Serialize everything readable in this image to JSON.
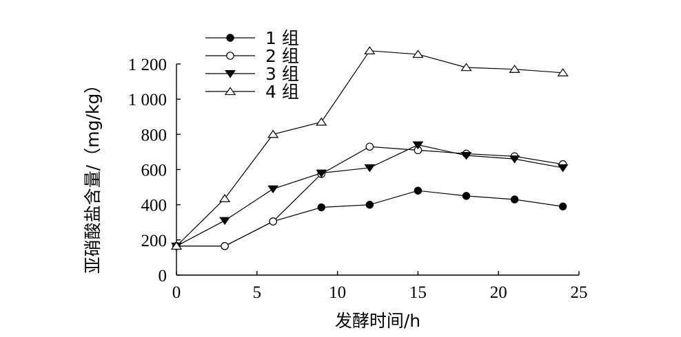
{
  "chart_data": {
    "type": "line",
    "xlabel": "发酵时间/h",
    "ylabel": "亚硝酸盐含量/（mg/kg）",
    "xlim": [
      0,
      25
    ],
    "ylim": [
      0,
      1200
    ],
    "x_ticks": [
      0,
      5,
      10,
      15,
      20,
      25
    ],
    "x_tick_labels": [
      "0",
      "5",
      "10",
      "15",
      "20",
      "25"
    ],
    "y_ticks": [
      0,
      200,
      400,
      600,
      800,
      1000,
      1200
    ],
    "y_tick_labels": [
      "0",
      "200",
      "400",
      "600",
      "800",
      "1 000",
      "1 200"
    ],
    "grid": false,
    "legend_position": "top-left",
    "series": [
      {
        "name": "1 组",
        "marker": "filled-circle",
        "x": [
          0,
          3,
          6,
          9,
          12,
          15,
          18,
          21,
          24
        ],
        "y": [
          165,
          165,
          305,
          385,
          400,
          480,
          450,
          430,
          390
        ]
      },
      {
        "name": "2 组",
        "marker": "open-circle",
        "x": [
          0,
          3,
          6,
          9,
          12,
          15,
          18,
          21,
          24
        ],
        "y": [
          165,
          165,
          305,
          575,
          730,
          710,
          690,
          675,
          630
        ]
      },
      {
        "name": "3 组",
        "marker": "filled-triangle-down",
        "x": [
          0,
          3,
          6,
          9,
          12,
          15,
          18,
          21,
          24
        ],
        "y": [
          165,
          310,
          490,
          580,
          610,
          740,
          680,
          660,
          610
        ]
      },
      {
        "name": "4 组",
        "marker": "open-triangle-up",
        "x": [
          0,
          3,
          6,
          9,
          12,
          15,
          18,
          21,
          24
        ],
        "y": [
          165,
          435,
          800,
          870,
          1275,
          1255,
          1180,
          1170,
          1150
        ]
      }
    ]
  }
}
